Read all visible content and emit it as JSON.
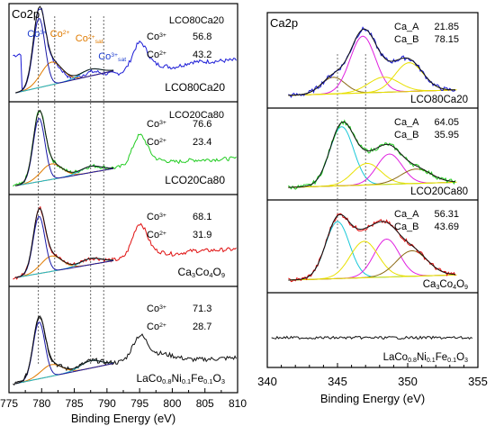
{
  "chart_data": [
    {
      "type": "line",
      "title": "Co2p",
      "xlabel": "Binding Energy (eV)",
      "ylabel": "",
      "xlim": [
        775,
        810
      ],
      "xticks": [
        775,
        780,
        785,
        790,
        795,
        800,
        805,
        810
      ],
      "reference_lines_x": [
        779.5,
        782,
        787.5,
        789.5
      ],
      "peak_labels": [
        {
          "base": "Co",
          "sup": "3+",
          "sub": "",
          "x": 779.3,
          "color": "#1f3fcf"
        },
        {
          "base": "Co",
          "sup": "2+",
          "sub": "",
          "x": 782.8,
          "color": "#e07b00"
        },
        {
          "base": "Co",
          "sup": "2+",
          "sub": "sat",
          "x": 787.3,
          "color": "#e07b00"
        },
        {
          "base": "Co",
          "sup": "3+",
          "sub": "sat",
          "x": 790.8,
          "color": "#1f3fcf"
        }
      ],
      "panels": [
        {
          "sample": "LCO80Ca20",
          "label_head": "LCO80Ca20",
          "co3": "56.8",
          "co2": "43.2",
          "data_color": "#1c1cd6",
          "co3_label": "Co",
          "co3_sup": "3+",
          "co2_label": "Co",
          "co2_sup": "2+"
        },
        {
          "sample": "LCO20Ca80",
          "label_head": "LCO20Ca80",
          "co3": "76.6",
          "co2": "23.4",
          "data_color": "#22cc22",
          "co3_label": "Co",
          "co3_sup": "3+",
          "co2_label": "Co",
          "co2_sup": "2+"
        },
        {
          "sample": "Ca3Co4O9",
          "label_head": "",
          "co3": "68.1",
          "co2": "31.9",
          "data_color": "#e01010",
          "co3_label": "Co",
          "co3_sup": "3+",
          "co2_label": "Co",
          "co2_sup": "2+"
        },
        {
          "sample": "LaCo0.8Ni0.1Fe0.1O3",
          "label_head": "",
          "co3": "71.3",
          "co2": "28.7",
          "data_color": "#111111",
          "co3_label": "Co",
          "co3_sup": "3+",
          "co2_label": "Co",
          "co2_sup": "2+"
        }
      ]
    },
    {
      "type": "line",
      "title": "Ca2p",
      "xlabel": "Binding Energy (eV)",
      "ylabel": "",
      "xlim": [
        340,
        355
      ],
      "xticks": [
        340,
        345,
        350,
        355
      ],
      "reference_lines_x": [
        345,
        347
      ],
      "panels": [
        {
          "sample": "LCO80Ca20",
          "ca_a_label": "Ca_A",
          "ca_a": "21.85",
          "ca_b_label": "Ca_B",
          "ca_b": "78.15",
          "data_color": "#1c1cd6"
        },
        {
          "sample": "LCO20Ca80",
          "ca_a_label": "Ca_A",
          "ca_a": "64.05",
          "ca_b_label": "Ca_B",
          "ca_b": "35.95",
          "data_color": "#22cc22"
        },
        {
          "sample": "Ca3Co4O9",
          "ca_a_label": "Ca_A",
          "ca_a": "56.31",
          "ca_b_label": "Ca_B",
          "ca_b": "43.69",
          "data_color": "#e01010"
        },
        {
          "sample": "LaCo0.8Ni0.1Fe0.1O3",
          "ca_a_label": "",
          "ca_a": "",
          "ca_b_label": "",
          "ca_b": "",
          "data_color": "#111111"
        }
      ]
    }
  ],
  "sample_formulas": {
    "Ca3Co4O9": [
      [
        "Ca",
        ""
      ],
      [
        "3",
        "sub"
      ],
      [
        "Co",
        ""
      ],
      [
        "4",
        "sub"
      ],
      [
        "O",
        ""
      ],
      [
        "9",
        "sub"
      ]
    ],
    "LaCo0.8Ni0.1Fe0.1O3": [
      [
        "LaCo",
        ""
      ],
      [
        "0.8",
        "sub"
      ],
      [
        "Ni",
        ""
      ],
      [
        "0.1",
        "sub"
      ],
      [
        "Fe",
        ""
      ],
      [
        "0.1",
        "sub"
      ],
      [
        "O",
        ""
      ],
      [
        "3",
        "sub"
      ]
    ]
  },
  "colors": {
    "fit_envelope": "#111111",
    "co3_component": "#1a1aa8",
    "co2_component": "#e07b00",
    "background": "#e07b00",
    "sat_component": "#20b8c8",
    "ca_teal": "#18c8d8",
    "ca_magenta": "#e020e0",
    "ca_yellow": "#e8e000",
    "ca_brown": "#8b6914",
    "reference_line": "#555555"
  }
}
